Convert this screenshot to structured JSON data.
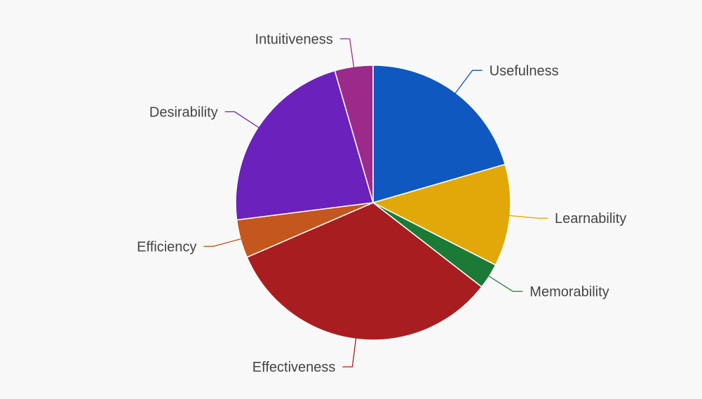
{
  "chart_data": {
    "type": "pie",
    "title": "",
    "start_angle_deg": 0,
    "direction": "clockwise",
    "categories": [
      "Usefulness",
      "Learnability",
      "Memorability",
      "Effectiveness",
      "Efficiency",
      "Desirability",
      "Intuitiveness"
    ],
    "values": [
      20.5,
      12.0,
      3.0,
      33.0,
      4.5,
      22.5,
      4.5
    ],
    "colors": [
      "#0f58c0",
      "#e2a80a",
      "#1a7a36",
      "#a81e20",
      "#c4571d",
      "#6b21bb",
      "#9c2a8a"
    ]
  }
}
